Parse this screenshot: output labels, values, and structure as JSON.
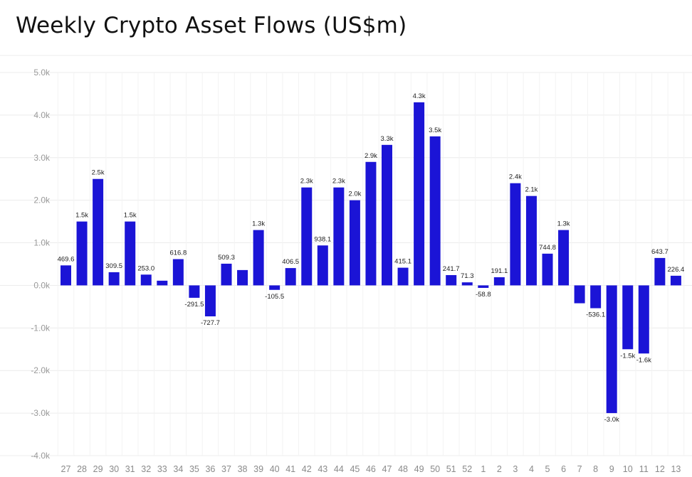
{
  "title": "Weekly Crypto Asset Flows (US$m)",
  "colors": {
    "bar": "#1b14d6",
    "grid": "#ececec",
    "background": "#ffffff"
  },
  "chart_data": {
    "type": "bar",
    "title": "Weekly Crypto Asset Flows (US$m)",
    "xlabel": "",
    "ylabel": "",
    "ylim": [
      -4000,
      5000
    ],
    "yticks": [
      5000,
      4000,
      3000,
      2000,
      1000,
      0,
      -1000,
      -2000,
      -3000,
      -4000
    ],
    "ytick_labels": [
      "5.0k",
      "4.0k",
      "3.0k",
      "2.0k",
      "1.0k",
      "0.0k",
      "-1.0k",
      "-2.0k",
      "-3.0k",
      "-4.0k"
    ],
    "grid": true,
    "categories": [
      "27",
      "28",
      "29",
      "30",
      "31",
      "32",
      "33",
      "34",
      "35",
      "36",
      "37",
      "38",
      "39",
      "40",
      "41",
      "42",
      "43",
      "44",
      "45",
      "46",
      "47",
      "48",
      "49",
      "50",
      "51",
      "52",
      "1",
      "2",
      "3",
      "4",
      "5",
      "6",
      "7",
      "8",
      "9",
      "10",
      "11",
      "12",
      "13"
    ],
    "values": [
      469.6,
      1500,
      2500,
      309.5,
      1500,
      253.0,
      110,
      616.8,
      -291.5,
      -727.7,
      509.3,
      360,
      1300,
      -105.5,
      406.5,
      2300,
      938.1,
      2300,
      2000,
      2900,
      3300,
      415.1,
      4300,
      3500,
      241.7,
      71.3,
      -58.8,
      191.1,
      2400,
      2100,
      744.8,
      1300,
      -420,
      -536.1,
      -3000,
      -1500,
      -1600,
      643.7,
      226.4
    ],
    "data_labels": [
      "469.6",
      "1.5k",
      "2.5k",
      "309.5",
      "1.5k",
      "253.0",
      "",
      "616.8",
      "-291.5",
      "-727.7",
      "509.3",
      "",
      "1.3k",
      "-105.5",
      "406.5",
      "2.3k",
      "938.1",
      "2.3k",
      "2.0k",
      "2.9k",
      "3.3k",
      "415.1",
      "4.3k",
      "3.5k",
      "241.7",
      "71.3",
      "-58.8",
      "191.1",
      "2.4k",
      "2.1k",
      "744.8",
      "1.3k",
      "",
      "-536.1",
      "-3.0k",
      "-1.5k",
      "-1.6k",
      "643.7",
      "226.4"
    ]
  }
}
